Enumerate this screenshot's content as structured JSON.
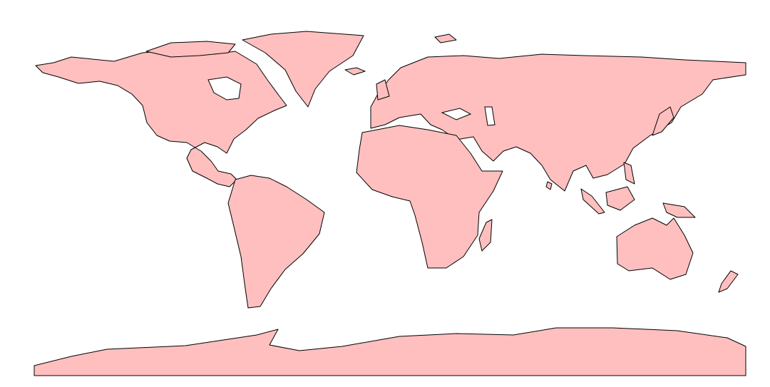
{
  "map": {
    "projection": "equirectangular",
    "fill_color": "#ffbfbf",
    "stroke_color": "#000000",
    "background_color": "#ffffff"
  }
}
